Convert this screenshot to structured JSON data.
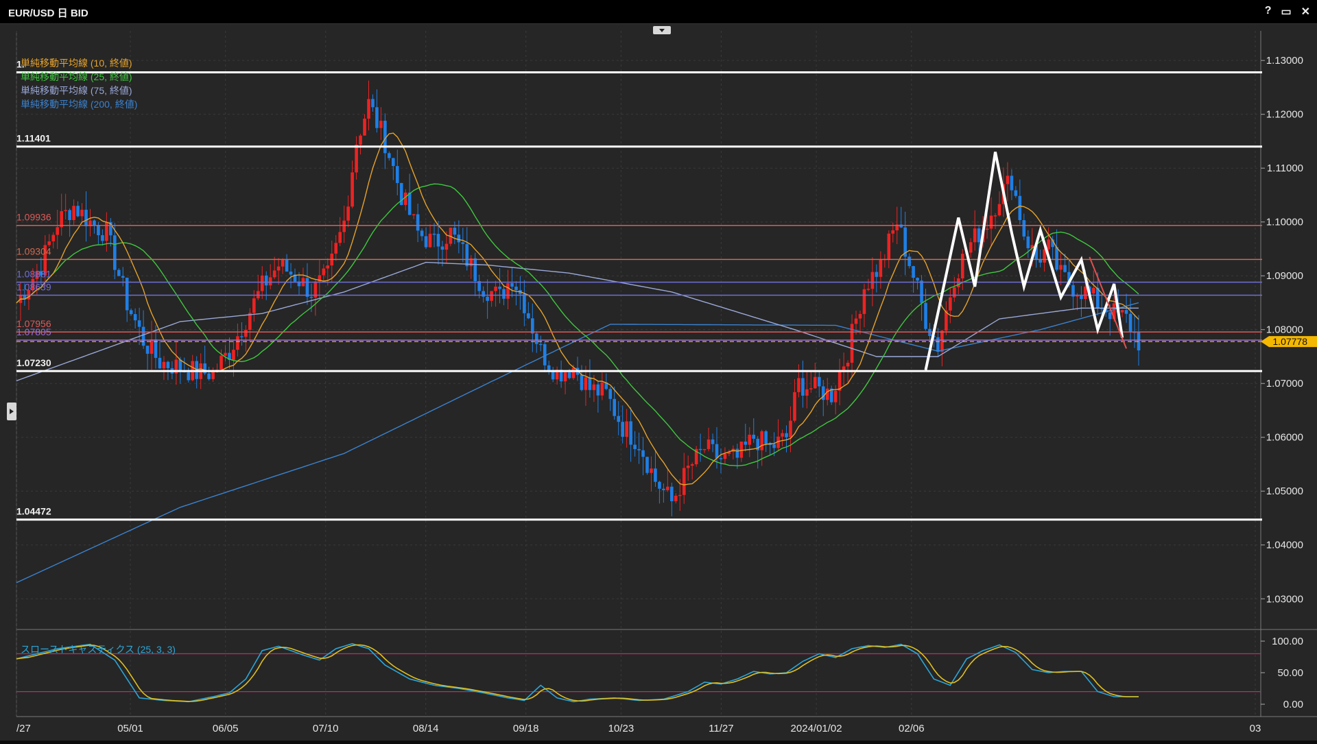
{
  "window": {
    "title": "EUR/USD 日 BID",
    "buttons": [
      "?",
      "▭",
      "✕"
    ]
  },
  "legend": [
    {
      "label": "単純移動平均線 (10, 終値)",
      "color": "#e8a32a"
    },
    {
      "label": "単純移動平均線 (25, 終値)",
      "color": "#3ec93e"
    },
    {
      "label": "単純移動平均線 (75, 終値)",
      "color": "#9aa8d8"
    },
    {
      "label": "単純移動平均線 (200, 終値)",
      "color": "#3a82d0"
    }
  ],
  "oscillator_label": "スローストキャスティクス (25, 3, 3)",
  "colors": {
    "background": "#262626",
    "bull": "#ee2222",
    "bear": "#1e7fe6",
    "grid": "#3a3a3a",
    "current_price": "#f5b800"
  },
  "chart_data": [
    {
      "type": "candlestick",
      "title": "EUR/USD 日 BID",
      "ylim": [
        1.0243,
        1.1355
      ],
      "y_ticks": [
        "1.13000",
        "1.12000",
        "1.11000",
        "1.10000",
        "1.09000",
        "1.08000",
        "1.07000",
        "1.06000",
        "1.05000",
        "1.04000",
        "1.03000"
      ],
      "x_tick_labels": [
        "/27",
        "05/01",
        "06/05",
        "07/10",
        "08/14",
        "09/18",
        "10/23",
        "11/27",
        "2024/01/02",
        "02/06",
        "03"
      ],
      "current_price": {
        "value": 1.07778,
        "label": "1.07778"
      },
      "horizontal_levels": [
        {
          "value": 1.1278,
          "label": "1.",
          "color": "#ffffff",
          "width": 3
        },
        {
          "value": 1.11401,
          "label": "1.11401",
          "color": "#ffffff",
          "width": 3
        },
        {
          "value": 1.09936,
          "label": "1.09936",
          "color": "#e05a5a",
          "width": 1.5
        },
        {
          "value": 1.09304,
          "label": "1.09304",
          "color": "#d06a50",
          "width": 1.5
        },
        {
          "value": 1.08881,
          "label": "1.08881",
          "color": "#6f6fd8",
          "width": 1.5
        },
        {
          "value": 1.08639,
          "label": "1.08639",
          "color": "#6f6fd8",
          "width": 1.5
        },
        {
          "value": 1.07956,
          "label": "1.07956",
          "color": "#e05a5a",
          "width": 1.5
        },
        {
          "value": 1.07805,
          "label": "1.07805",
          "color": "#9a6fd8",
          "width": 1.5
        },
        {
          "value": 1.0723,
          "label": "1.07230",
          "color": "#ffffff",
          "width": 3
        },
        {
          "value": 1.04472,
          "label": "1.04472",
          "color": "#ffffff",
          "width": 3
        }
      ],
      "close_anchors": [
        [
          0,
          1.085
        ],
        [
          6,
          1.092
        ],
        [
          10,
          1.1
        ],
        [
          14,
          1.103
        ],
        [
          18,
          1.1
        ],
        [
          22,
          1.098
        ],
        [
          27,
          1.085
        ],
        [
          31,
          1.078
        ],
        [
          35,
          1.074
        ],
        [
          40,
          1.073
        ],
        [
          44,
          1.072
        ],
        [
          48,
          1.072
        ],
        [
          52,
          1.076
        ],
        [
          56,
          1.082
        ],
        [
          60,
          1.088
        ],
        [
          64,
          1.092
        ],
        [
          68,
          1.09
        ],
        [
          72,
          1.087
        ],
        [
          76,
          1.09
        ],
        [
          80,
          1.1
        ],
        [
          83,
          1.115
        ],
        [
          86,
          1.122
        ],
        [
          90,
          1.115
        ],
        [
          94,
          1.105
        ],
        [
          98,
          1.098
        ],
        [
          102,
          1.096
        ],
        [
          106,
          1.098
        ],
        [
          110,
          1.093
        ],
        [
          114,
          1.088
        ],
        [
          118,
          1.086
        ],
        [
          121,
          1.09
        ],
        [
          124,
          1.085
        ],
        [
          128,
          1.076
        ],
        [
          132,
          1.072
        ],
        [
          136,
          1.073
        ],
        [
          140,
          1.069
        ],
        [
          144,
          1.068
        ],
        [
          148,
          1.062
        ],
        [
          152,
          1.059
        ],
        [
          156,
          1.052
        ],
        [
          160,
          1.048
        ],
        [
          164,
          1.054
        ],
        [
          168,
          1.058
        ],
        [
          172,
          1.056
        ],
        [
          176,
          1.056
        ],
        [
          180,
          1.06
        ],
        [
          184,
          1.058
        ],
        [
          188,
          1.06
        ],
        [
          191,
          1.07
        ],
        [
          195,
          1.069
        ],
        [
          199,
          1.068
        ],
        [
          203,
          1.076
        ],
        [
          207,
          1.088
        ],
        [
          211,
          1.092
        ],
        [
          215,
          1.1
        ],
        [
          219,
          1.09
        ],
        [
          222,
          1.082
        ],
        [
          225,
          1.077
        ],
        [
          229,
          1.09
        ],
        [
          233,
          1.096
        ],
        [
          237,
          1.1
        ],
        [
          240,
          1.105
        ],
        [
          243,
          1.108
        ],
        [
          246,
          1.098
        ],
        [
          249,
          1.093
        ],
        [
          252,
          1.095
        ],
        [
          255,
          1.09
        ],
        [
          258,
          1.088
        ],
        [
          261,
          1.087
        ],
        [
          264,
          1.085
        ],
        [
          268,
          1.083
        ],
        [
          271,
          1.082
        ],
        [
          274,
          1.0778
        ]
      ],
      "ma": [
        {
          "name": "単純移動平均線 (10, 終値)",
          "period": 10,
          "color": "#e8a32a"
        },
        {
          "name": "単純移動平均線 (25, 終値)",
          "period": 25,
          "color": "#3ec93e"
        },
        {
          "name": "単純移動平均線 (75, 終値)",
          "period": 75,
          "color": "#9aa8d8"
        },
        {
          "name": "単純移動平均線 (200, 終値)",
          "period": 200,
          "color": "#3a82d0"
        }
      ],
      "ma75_anchors": [
        [
          0,
          1.0705
        ],
        [
          40,
          1.0815
        ],
        [
          60,
          1.083
        ],
        [
          80,
          1.087
        ],
        [
          100,
          1.0925
        ],
        [
          115,
          1.092
        ],
        [
          135,
          1.0905
        ],
        [
          160,
          1.087
        ],
        [
          190,
          1.08
        ],
        [
          210,
          1.075
        ],
        [
          225,
          1.075
        ],
        [
          240,
          1.082
        ],
        [
          260,
          1.084
        ],
        [
          274,
          1.084
        ]
      ],
      "ma200_anchors": [
        [
          0,
          1.033
        ],
        [
          40,
          1.047
        ],
        [
          80,
          1.057
        ],
        [
          115,
          1.07
        ],
        [
          145,
          1.081
        ],
        [
          200,
          1.0808
        ],
        [
          225,
          1.076
        ],
        [
          250,
          1.08
        ],
        [
          274,
          1.085
        ]
      ],
      "drawn_zigzag": [
        [
          222,
          1.0725
        ],
        [
          230,
          1.1008
        ],
        [
          234,
          1.088
        ],
        [
          239,
          1.113
        ],
        [
          243,
          1.098
        ],
        [
          246,
          1.088
        ],
        [
          250,
          1.0985
        ],
        [
          255,
          1.086
        ],
        [
          260,
          1.093
        ],
        [
          264,
          1.08
        ],
        [
          268,
          1.0885
        ],
        [
          270,
          1.0785
        ]
      ]
    },
    {
      "type": "line",
      "title": "スローストキャスティクス (25, 3, 3)",
      "ylim": [
        0,
        100
      ],
      "y_ticks": [
        "100.00",
        "50.00",
        "0.00"
      ],
      "levels": [
        80,
        20
      ],
      "anchors": [
        [
          0,
          72
        ],
        [
          10,
          88
        ],
        [
          18,
          95
        ],
        [
          24,
          70
        ],
        [
          30,
          10
        ],
        [
          36,
          6
        ],
        [
          42,
          4
        ],
        [
          48,
          12
        ],
        [
          52,
          18
        ],
        [
          56,
          40
        ],
        [
          60,
          85
        ],
        [
          64,
          92
        ],
        [
          70,
          78
        ],
        [
          74,
          70
        ],
        [
          78,
          88
        ],
        [
          82,
          96
        ],
        [
          86,
          88
        ],
        [
          90,
          62
        ],
        [
          96,
          40
        ],
        [
          102,
          30
        ],
        [
          108,
          25
        ],
        [
          114,
          18
        ],
        [
          120,
          10
        ],
        [
          124,
          6
        ],
        [
          128,
          30
        ],
        [
          132,
          10
        ],
        [
          136,
          4
        ],
        [
          140,
          8
        ],
        [
          146,
          10
        ],
        [
          152,
          6
        ],
        [
          158,
          8
        ],
        [
          164,
          20
        ],
        [
          168,
          35
        ],
        [
          172,
          32
        ],
        [
          176,
          40
        ],
        [
          180,
          52
        ],
        [
          184,
          48
        ],
        [
          188,
          50
        ],
        [
          192,
          68
        ],
        [
          196,
          80
        ],
        [
          200,
          74
        ],
        [
          204,
          88
        ],
        [
          208,
          93
        ],
        [
          212,
          90
        ],
        [
          216,
          95
        ],
        [
          220,
          80
        ],
        [
          224,
          40
        ],
        [
          228,
          30
        ],
        [
          232,
          72
        ],
        [
          236,
          85
        ],
        [
          240,
          94
        ],
        [
          244,
          82
        ],
        [
          248,
          55
        ],
        [
          252,
          50
        ],
        [
          256,
          52
        ],
        [
          260,
          52
        ],
        [
          264,
          20
        ],
        [
          268,
          12
        ],
        [
          272,
          12
        ],
        [
          274,
          12
        ]
      ]
    }
  ]
}
